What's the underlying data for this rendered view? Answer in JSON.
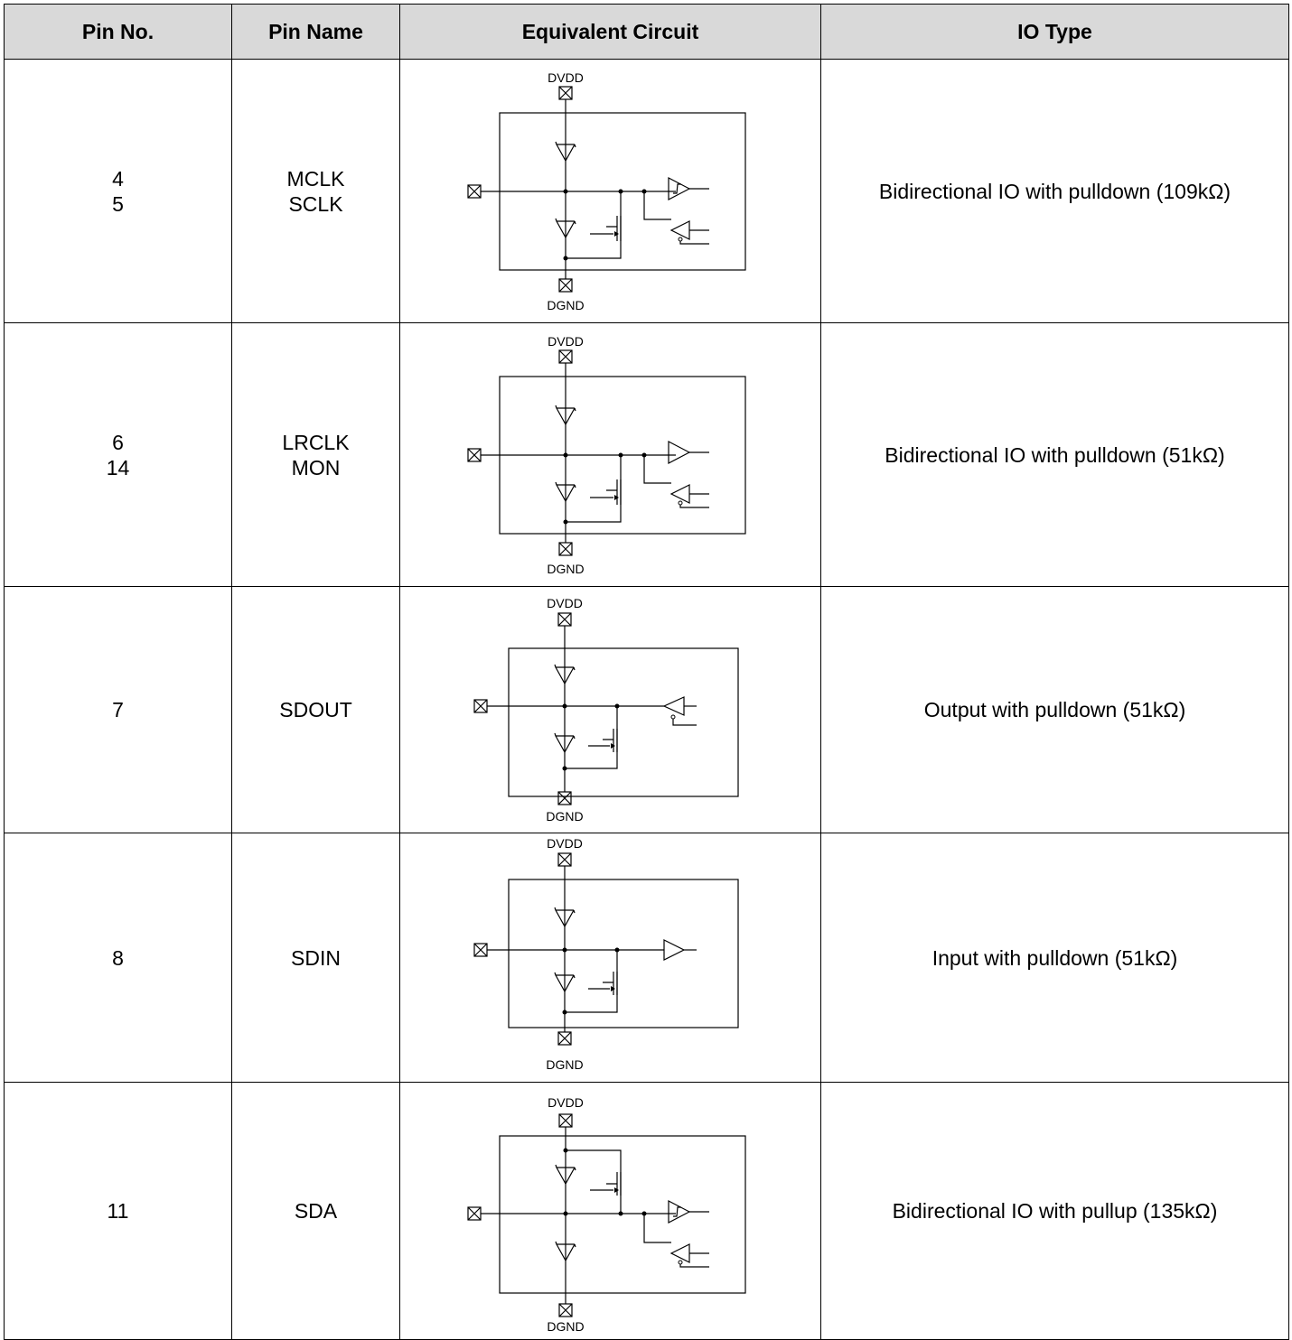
{
  "headers": {
    "pin_no": "Pin No.",
    "pin_name": "Pin Name",
    "equivalent_circuit": "Equivalent Circuit",
    "io_type": "IO Type"
  },
  "circuit_labels": {
    "supply": "DVDD",
    "ground": "DGND"
  },
  "rows": [
    {
      "pin_no": [
        "4",
        "5"
      ],
      "pin_name": [
        "MCLK",
        "SCLK"
      ],
      "io_type": "Bidirectional IO with pulldown (109kΩ)"
    },
    {
      "pin_no": [
        "6",
        "14"
      ],
      "pin_name": [
        "LRCLK",
        "MON"
      ],
      "io_type": "Bidirectional IO with pulldown (51kΩ)"
    },
    {
      "pin_no": [
        "7"
      ],
      "pin_name": [
        "SDOUT"
      ],
      "io_type": "Output with pulldown (51kΩ)"
    },
    {
      "pin_no": [
        "8"
      ],
      "pin_name": [
        "SDIN"
      ],
      "io_type": "Input with pulldown (51kΩ)"
    },
    {
      "pin_no": [
        "11"
      ],
      "pin_name": [
        "SDA"
      ],
      "io_type": "Bidirectional IO with pullup (135kΩ)"
    }
  ]
}
